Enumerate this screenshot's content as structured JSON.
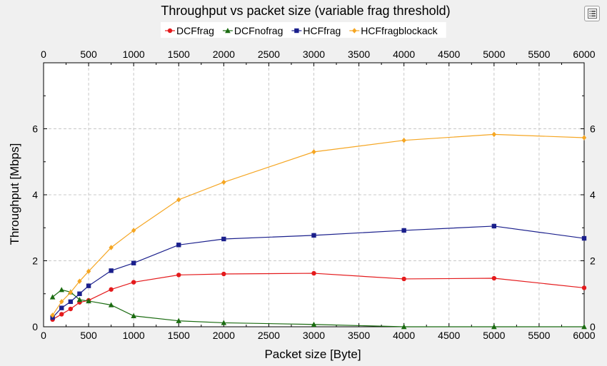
{
  "chart_data": {
    "type": "line",
    "title": "Throughput vs packet size (variable frag threshold)",
    "xlabel": "Packet size [Byte]",
    "ylabel": "Throughput [Mbps]",
    "xlim": [
      0,
      6000
    ],
    "ylim": [
      0,
      8
    ],
    "x_ticks": [
      0,
      500,
      1000,
      1500,
      2000,
      2500,
      3000,
      3500,
      4000,
      4500,
      5000,
      5500,
      6000
    ],
    "y_ticks": [
      0,
      2,
      4,
      6
    ],
    "grid": true,
    "legend_position": "top",
    "series": [
      {
        "name": "DCFfrag",
        "color": "#e41a1c",
        "marker": "circle",
        "x": [
          100,
          200,
          300,
          400,
          500,
          750,
          1000,
          1500,
          2000,
          3000,
          4000,
          5000,
          6000
        ],
        "y": [
          0.22,
          0.38,
          0.54,
          0.74,
          0.8,
          1.13,
          1.35,
          1.57,
          1.6,
          1.62,
          1.45,
          1.47,
          1.18
        ]
      },
      {
        "name": "DCFnofrag",
        "color": "#1a6b10",
        "marker": "triangle",
        "x": [
          100,
          200,
          300,
          400,
          500,
          750,
          1000,
          1500,
          2000,
          3000,
          4000,
          5000,
          6000
        ],
        "y": [
          0.9,
          1.12,
          1.05,
          0.82,
          0.78,
          0.66,
          0.33,
          0.18,
          0.12,
          0.07,
          0.0,
          0.0,
          0.0
        ]
      },
      {
        "name": "HCFfrag",
        "color": "#1a1f8c",
        "marker": "square",
        "x": [
          100,
          200,
          300,
          400,
          500,
          750,
          1000,
          1500,
          2000,
          3000,
          4000,
          5000,
          6000
        ],
        "y": [
          0.28,
          0.57,
          0.76,
          1.0,
          1.24,
          1.7,
          1.93,
          2.48,
          2.66,
          2.77,
          2.92,
          3.05,
          2.68
        ]
      },
      {
        "name": "HCFfragblockack",
        "color": "#f5a623",
        "marker": "diamond",
        "x": [
          100,
          200,
          300,
          400,
          500,
          750,
          1000,
          1500,
          2000,
          3000,
          4000,
          5000,
          6000
        ],
        "y": [
          0.35,
          0.76,
          1.04,
          1.38,
          1.68,
          2.4,
          2.92,
          3.85,
          4.38,
          5.3,
          5.65,
          5.83,
          5.73
        ]
      }
    ]
  },
  "toolbar": {
    "menu_icon": "list-icon"
  }
}
